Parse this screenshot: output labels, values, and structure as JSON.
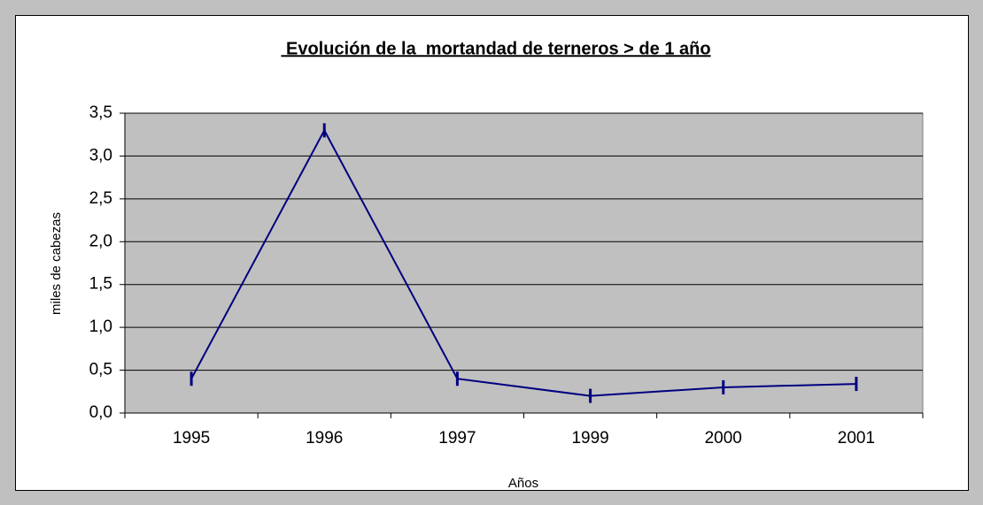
{
  "chart_data": {
    "type": "line",
    "title": " Evolución de la  mortandad de terneros > de 1 año",
    "y_label": "miles de cabezas",
    "x_label": "Años",
    "categories": [
      "1995",
      "1996",
      "1997",
      "1999",
      "2000",
      "2001"
    ],
    "series": [
      {
        "name": "mortandad",
        "color": "#000080",
        "values": [
          0.4,
          3.3,
          0.4,
          0.2,
          0.3,
          0.34
        ]
      }
    ],
    "ylim": [
      0,
      3.5
    ],
    "yticks": [
      {
        "value": 0,
        "label": "0,0"
      },
      {
        "value": 0.5,
        "label": "0,5"
      },
      {
        "value": 1,
        "label": "1,0"
      },
      {
        "value": 1.5,
        "label": "1,5"
      },
      {
        "value": 2,
        "label": "2,0"
      },
      {
        "value": 2.5,
        "label": "2,5"
      },
      {
        "value": 3,
        "label": "3,0"
      },
      {
        "value": 3.5,
        "label": "3,5"
      }
    ],
    "grid": true,
    "plot_background": "#c0c0c0"
  }
}
